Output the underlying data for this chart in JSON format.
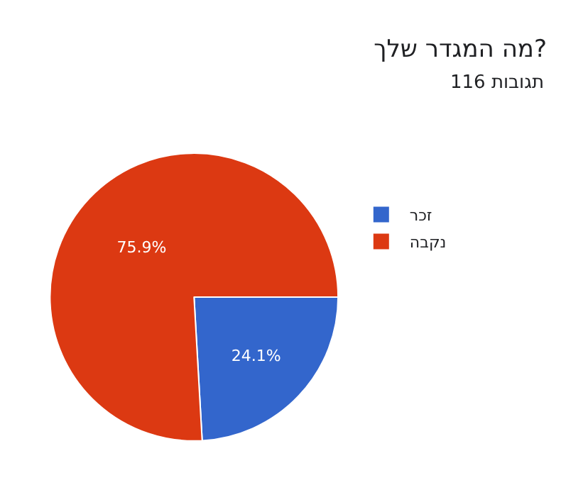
{
  "chart_data": {
    "type": "pie",
    "title": "מה המגדר שלך?",
    "subtitle": "116 תגובות",
    "categories": [
      "זכר",
      "נקבה"
    ],
    "values": [
      24.1,
      75.9
    ],
    "colors": [
      "#3366cc",
      "#dc3912"
    ],
    "value_labels": [
      "24.1%",
      "75.9%"
    ],
    "legend": "top right"
  }
}
